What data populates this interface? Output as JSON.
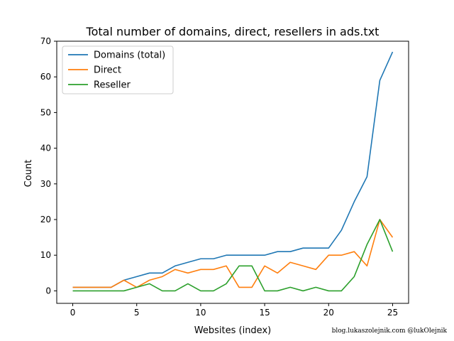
{
  "chart_data": {
    "type": "line",
    "title": "Total number of domains, direct, resellers in ads.txt",
    "xlabel": "Websites (index)",
    "ylabel": "Count",
    "xlim": [
      -1.25,
      26.25
    ],
    "ylim": [
      -3.5,
      70
    ],
    "xticks": [
      0,
      5,
      10,
      15,
      20,
      25
    ],
    "yticks": [
      0,
      10,
      20,
      30,
      40,
      50,
      60,
      70
    ],
    "grid": false,
    "legend_position": "top-left",
    "x": [
      0,
      1,
      2,
      3,
      4,
      5,
      6,
      7,
      8,
      9,
      10,
      11,
      12,
      13,
      14,
      15,
      16,
      17,
      18,
      19,
      20,
      21,
      22,
      23,
      24,
      25
    ],
    "series": [
      {
        "name": "Domains (total)",
        "color": "#1f77b4",
        "values": [
          1,
          1,
          1,
          1,
          3,
          4,
          5,
          5,
          7,
          8,
          9,
          9,
          10,
          10,
          10,
          10,
          11,
          11,
          12,
          12,
          12,
          17,
          25,
          32,
          59,
          67
        ]
      },
      {
        "name": "Direct",
        "color": "#ff7f0e",
        "values": [
          1,
          1,
          1,
          1,
          3,
          1,
          3,
          4,
          6,
          5,
          6,
          6,
          7,
          1,
          1,
          7,
          5,
          8,
          7,
          6,
          10,
          10,
          11,
          7,
          20,
          15
        ]
      },
      {
        "name": "Reseller",
        "color": "#2ca02c",
        "values": [
          0,
          0,
          0,
          0,
          0,
          1,
          2,
          0,
          0,
          2,
          0,
          0,
          2,
          7,
          7,
          0,
          0,
          1,
          0,
          1,
          0,
          0,
          4,
          13,
          20,
          11
        ]
      }
    ]
  },
  "credit": "blog.lukaszolejnik.com @lukOlejnik"
}
